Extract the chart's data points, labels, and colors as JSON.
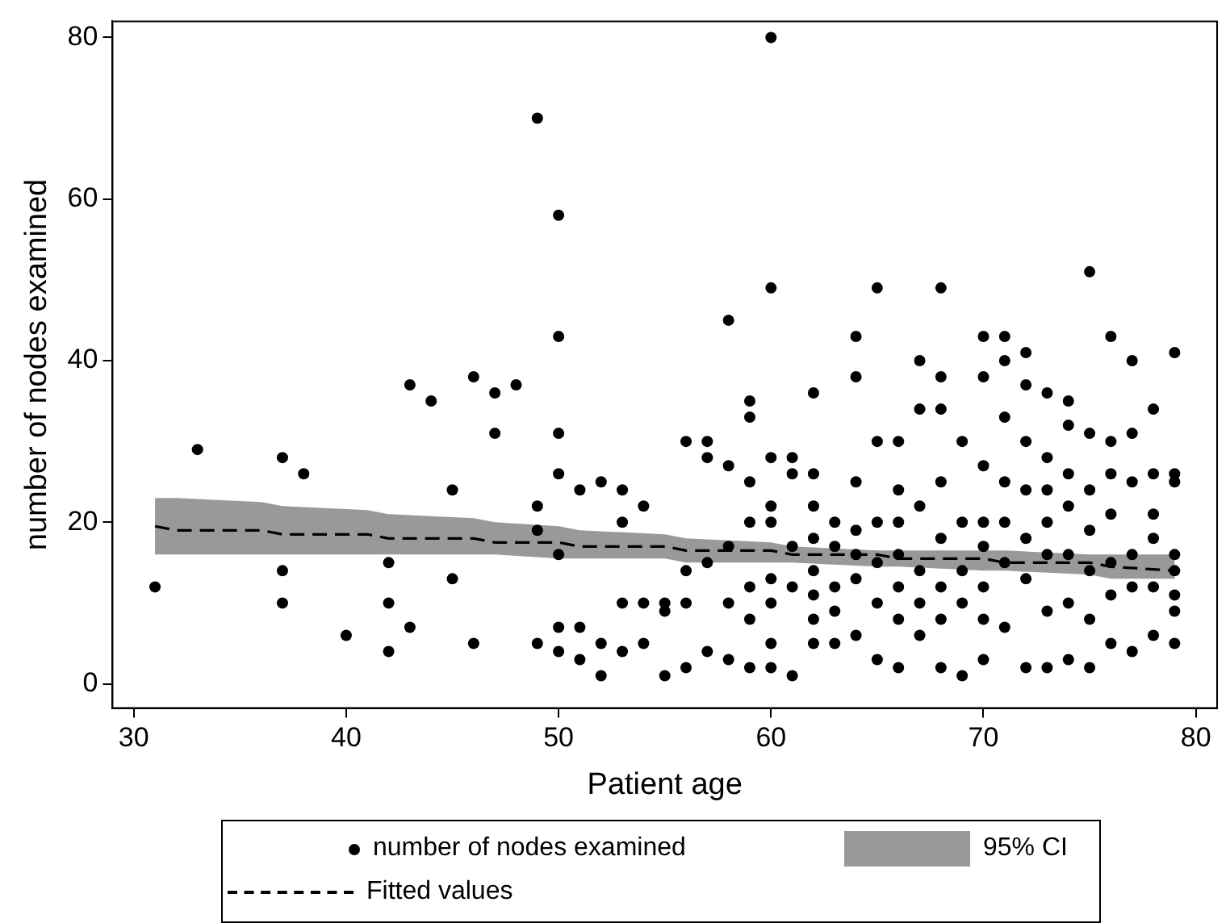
{
  "chart_data": {
    "type": "scatter",
    "xlabel": "Patient age",
    "ylabel": "number of nodes examined",
    "xlim": [
      29,
      81
    ],
    "xticks": [
      30,
      40,
      50,
      60,
      70,
      80
    ],
    "ylim": [
      -3,
      82
    ],
    "yticks": [
      0,
      20,
      40,
      60,
      80
    ],
    "grid": false,
    "legend": "bottom",
    "marker": "circle",
    "annotations": [
      "95% CI"
    ],
    "series": [
      {
        "name": "number of nodes examined",
        "color": "#000000",
        "x": [
          31,
          33,
          37,
          37,
          37,
          38,
          40,
          42,
          42,
          42,
          43,
          43,
          44,
          45,
          45,
          46,
          46,
          47,
          47,
          48,
          49,
          49,
          49,
          49,
          50,
          50,
          50,
          50,
          50,
          50,
          50,
          51,
          51,
          51,
          52,
          52,
          52,
          53,
          53,
          53,
          53,
          54,
          54,
          54,
          55,
          55,
          55,
          56,
          56,
          56,
          56,
          57,
          57,
          57,
          57,
          58,
          58,
          58,
          58,
          58,
          59,
          59,
          59,
          59,
          59,
          59,
          59,
          60,
          60,
          60,
          60,
          60,
          60,
          60,
          60,
          60,
          61,
          61,
          61,
          61,
          61,
          62,
          62,
          62,
          62,
          62,
          62,
          62,
          62,
          63,
          63,
          63,
          63,
          63,
          64,
          64,
          64,
          64,
          64,
          64,
          64,
          65,
          65,
          65,
          65,
          65,
          65,
          66,
          66,
          66,
          66,
          66,
          66,
          66,
          67,
          67,
          67,
          67,
          67,
          67,
          68,
          68,
          68,
          68,
          68,
          68,
          68,
          68,
          69,
          69,
          69,
          69,
          69,
          70,
          70,
          70,
          70,
          70,
          70,
          70,
          70,
          71,
          71,
          71,
          71,
          71,
          71,
          71,
          72,
          72,
          72,
          72,
          72,
          72,
          72,
          73,
          73,
          73,
          73,
          73,
          73,
          73,
          74,
          74,
          74,
          74,
          74,
          74,
          74,
          75,
          75,
          75,
          75,
          75,
          75,
          75,
          76,
          76,
          76,
          76,
          76,
          76,
          76,
          77,
          77,
          77,
          77,
          77,
          77,
          78,
          78,
          78,
          78,
          78,
          78,
          79,
          79,
          79,
          79,
          79,
          79,
          79,
          79
        ],
        "values": [
          12,
          29,
          28,
          14,
          10,
          26,
          6,
          15,
          10,
          4,
          37,
          7,
          35,
          24,
          13,
          38,
          5,
          36,
          31,
          37,
          70,
          22,
          19,
          5,
          58,
          43,
          31,
          26,
          16,
          7,
          4,
          24,
          7,
          3,
          25,
          5,
          1,
          24,
          20,
          10,
          4,
          22,
          10,
          5,
          10,
          9,
          1,
          30,
          14,
          10,
          2,
          30,
          28,
          15,
          4,
          45,
          27,
          17,
          10,
          3,
          35,
          33,
          25,
          20,
          12,
          8,
          2,
          80,
          49,
          28,
          22,
          20,
          13,
          10,
          5,
          2,
          28,
          26,
          17,
          12,
          1,
          36,
          26,
          22,
          18,
          14,
          11,
          8,
          5,
          20,
          17,
          12,
          9,
          5,
          43,
          38,
          25,
          19,
          16,
          13,
          6,
          49,
          30,
          20,
          15,
          10,
          3,
          30,
          24,
          20,
          16,
          12,
          8,
          2,
          40,
          34,
          22,
          14,
          10,
          6,
          49,
          38,
          34,
          25,
          18,
          12,
          8,
          2,
          30,
          20,
          14,
          10,
          1,
          43,
          38,
          27,
          20,
          17,
          12,
          8,
          3,
          43,
          40,
          33,
          25,
          20,
          15,
          7,
          41,
          37,
          30,
          24,
          18,
          13,
          2,
          36,
          28,
          24,
          20,
          16,
          9,
          2,
          35,
          32,
          26,
          22,
          16,
          10,
          3,
          51,
          31,
          24,
          19,
          14,
          8,
          2,
          43,
          30,
          26,
          21,
          15,
          11,
          5,
          40,
          31,
          25,
          16,
          12,
          4,
          34,
          26,
          21,
          18,
          12,
          6,
          41,
          26,
          25,
          16,
          14,
          11,
          9,
          5
        ]
      },
      {
        "name": "Fitted values",
        "type": "line",
        "marker": "none",
        "color": "#000000",
        "line_style": "dashed",
        "x": [
          31,
          32,
          36,
          37,
          41,
          42,
          46,
          47,
          50,
          51,
          55,
          56,
          60,
          61,
          65,
          66,
          70,
          71,
          75,
          76,
          79
        ],
        "values": [
          19.5,
          19,
          19,
          18.5,
          18.5,
          18,
          18,
          17.5,
          17.5,
          17,
          17,
          16.5,
          16.5,
          16,
          16,
          15.5,
          15.5,
          15,
          15,
          14.5,
          14
        ],
        "lower": [
          16,
          16,
          16,
          16,
          16,
          16,
          16,
          16,
          15.5,
          15.5,
          15.5,
          15,
          15,
          15,
          14.5,
          14.5,
          14,
          14,
          13.5,
          13,
          13
        ],
        "upper": [
          23,
          23,
          22.5,
          22,
          21.5,
          21,
          20.5,
          20,
          19.5,
          19,
          18.5,
          18,
          17.5,
          17,
          16.5,
          16.5,
          16.5,
          16.5,
          16,
          16,
          16
        ]
      }
    ]
  }
}
